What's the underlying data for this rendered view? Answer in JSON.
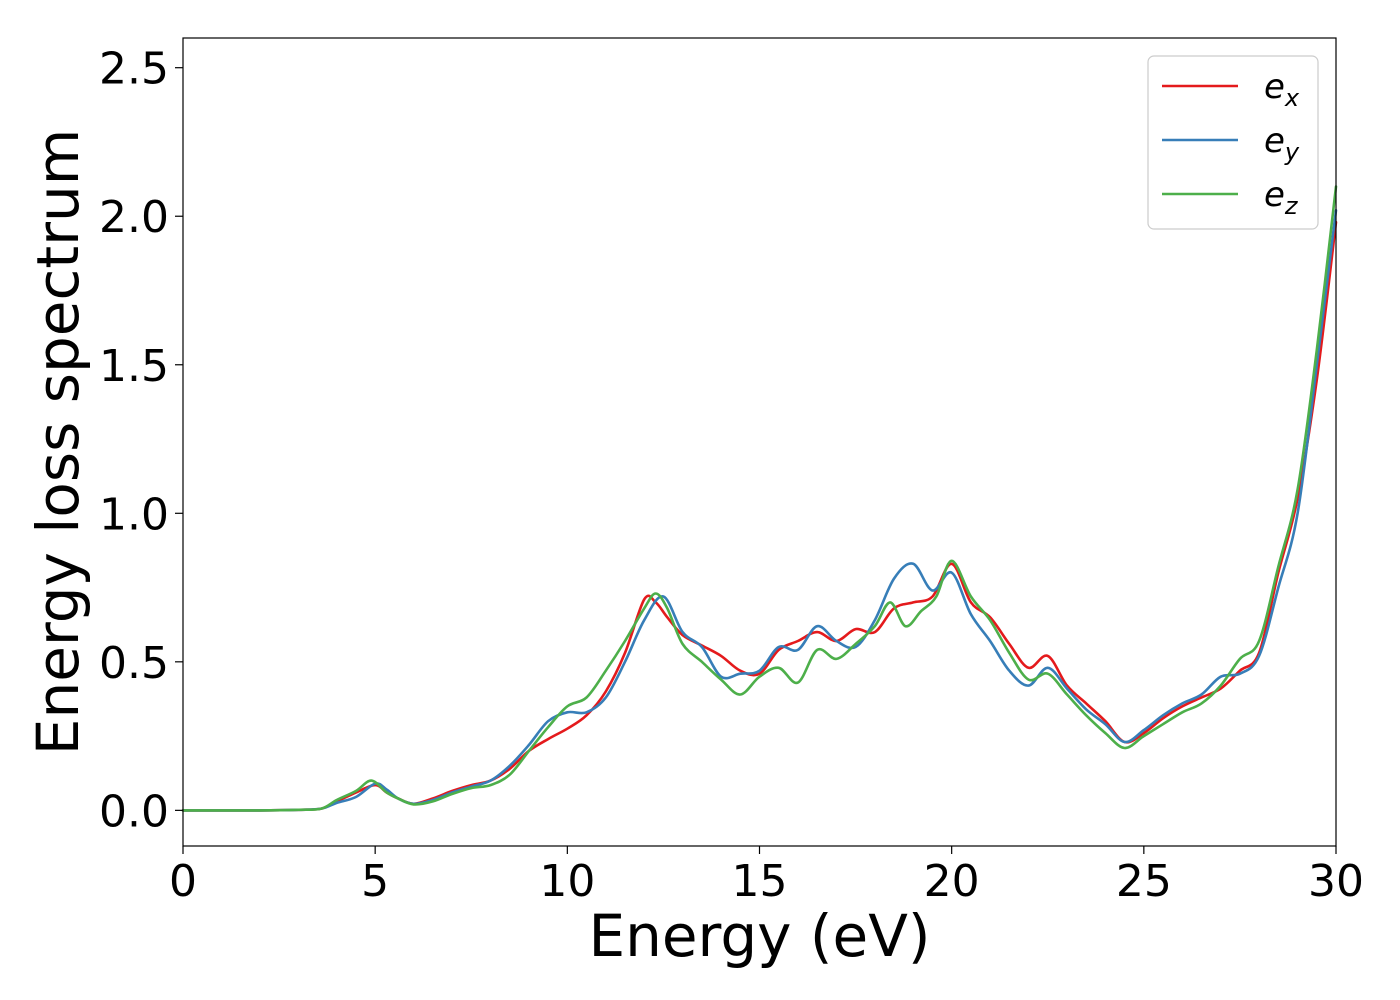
{
  "chart_data": {
    "type": "line",
    "title": "",
    "xlabel": "Energy (eV)",
    "ylabel": "Energy loss spectrum",
    "xlim": [
      0,
      30
    ],
    "ylim": [
      -0.12,
      2.6
    ],
    "x_ticks": [
      0,
      5,
      10,
      15,
      20,
      25,
      30
    ],
    "x_tick_labels": [
      "0",
      "5",
      "10",
      "15",
      "20",
      "25",
      "30"
    ],
    "y_ticks": [
      0.0,
      0.5,
      1.0,
      1.5,
      2.0,
      2.5
    ],
    "y_tick_labels": [
      "0.0",
      "0.5",
      "1.0",
      "1.5",
      "2.0",
      "2.5"
    ],
    "grid": false,
    "legend_position": "top-right",
    "series": [
      {
        "name": "e_x",
        "label_base": "e",
        "label_sub": "x",
        "color": "#e41a1c",
        "points": [
          [
            0,
            0.0
          ],
          [
            2,
            0.0
          ],
          [
            3,
            0.002
          ],
          [
            3.6,
            0.006
          ],
          [
            4.0,
            0.03
          ],
          [
            4.5,
            0.06
          ],
          [
            5.0,
            0.085
          ],
          [
            5.3,
            0.06
          ],
          [
            5.6,
            0.04
          ],
          [
            6.0,
            0.022
          ],
          [
            6.5,
            0.04
          ],
          [
            7.0,
            0.065
          ],
          [
            7.5,
            0.085
          ],
          [
            8.0,
            0.1
          ],
          [
            8.5,
            0.14
          ],
          [
            9.0,
            0.2
          ],
          [
            9.5,
            0.24
          ],
          [
            10.0,
            0.275
          ],
          [
            10.5,
            0.32
          ],
          [
            11.0,
            0.4
          ],
          [
            11.5,
            0.53
          ],
          [
            12.0,
            0.71
          ],
          [
            12.3,
            0.7
          ],
          [
            12.6,
            0.65
          ],
          [
            13.0,
            0.59
          ],
          [
            13.5,
            0.555
          ],
          [
            14.0,
            0.52
          ],
          [
            14.5,
            0.47
          ],
          [
            15.0,
            0.46
          ],
          [
            15.5,
            0.54
          ],
          [
            16.0,
            0.57
          ],
          [
            16.5,
            0.6
          ],
          [
            17.0,
            0.57
          ],
          [
            17.5,
            0.61
          ],
          [
            18.0,
            0.6
          ],
          [
            18.5,
            0.68
          ],
          [
            19.0,
            0.7
          ],
          [
            19.5,
            0.72
          ],
          [
            20.0,
            0.83
          ],
          [
            20.5,
            0.7
          ],
          [
            21.0,
            0.65
          ],
          [
            21.5,
            0.56
          ],
          [
            22.0,
            0.48
          ],
          [
            22.5,
            0.52
          ],
          [
            23.0,
            0.42
          ],
          [
            23.5,
            0.36
          ],
          [
            24.0,
            0.3
          ],
          [
            24.5,
            0.23
          ],
          [
            25.0,
            0.26
          ],
          [
            25.5,
            0.31
          ],
          [
            26.0,
            0.35
          ],
          [
            26.5,
            0.38
          ],
          [
            27.0,
            0.41
          ],
          [
            27.5,
            0.47
          ],
          [
            28.0,
            0.53
          ],
          [
            28.5,
            0.8
          ],
          [
            29.0,
            1.05
          ],
          [
            29.5,
            1.45
          ],
          [
            30.0,
            1.98
          ]
        ]
      },
      {
        "name": "e_y",
        "label_base": "e",
        "label_sub": "y",
        "color": "#377eb8",
        "points": [
          [
            0,
            0.0
          ],
          [
            2,
            0.0
          ],
          [
            3,
            0.002
          ],
          [
            3.6,
            0.006
          ],
          [
            4.0,
            0.025
          ],
          [
            4.5,
            0.045
          ],
          [
            5.0,
            0.09
          ],
          [
            5.3,
            0.07
          ],
          [
            5.6,
            0.04
          ],
          [
            6.0,
            0.022
          ],
          [
            6.5,
            0.035
          ],
          [
            7.0,
            0.06
          ],
          [
            7.5,
            0.08
          ],
          [
            8.0,
            0.1
          ],
          [
            8.5,
            0.15
          ],
          [
            9.0,
            0.22
          ],
          [
            9.5,
            0.3
          ],
          [
            10.0,
            0.33
          ],
          [
            10.5,
            0.33
          ],
          [
            11.0,
            0.38
          ],
          [
            11.5,
            0.5
          ],
          [
            12.0,
            0.64
          ],
          [
            12.5,
            0.72
          ],
          [
            13.0,
            0.6
          ],
          [
            13.5,
            0.55
          ],
          [
            14.0,
            0.45
          ],
          [
            14.5,
            0.46
          ],
          [
            15.0,
            0.47
          ],
          [
            15.5,
            0.55
          ],
          [
            16.0,
            0.54
          ],
          [
            16.5,
            0.62
          ],
          [
            17.0,
            0.57
          ],
          [
            17.5,
            0.55
          ],
          [
            18.0,
            0.64
          ],
          [
            18.5,
            0.78
          ],
          [
            19.0,
            0.83
          ],
          [
            19.5,
            0.74
          ],
          [
            20.0,
            0.8
          ],
          [
            20.5,
            0.66
          ],
          [
            21.0,
            0.57
          ],
          [
            21.5,
            0.47
          ],
          [
            22.0,
            0.42
          ],
          [
            22.5,
            0.48
          ],
          [
            23.0,
            0.41
          ],
          [
            23.5,
            0.34
          ],
          [
            24.0,
            0.29
          ],
          [
            24.5,
            0.23
          ],
          [
            25.0,
            0.27
          ],
          [
            25.5,
            0.32
          ],
          [
            26.0,
            0.36
          ],
          [
            26.5,
            0.39
          ],
          [
            27.0,
            0.45
          ],
          [
            27.5,
            0.46
          ],
          [
            28.0,
            0.52
          ],
          [
            28.5,
            0.75
          ],
          [
            29.0,
            1.0
          ],
          [
            29.5,
            1.5
          ],
          [
            30.0,
            2.02
          ]
        ]
      },
      {
        "name": "e_z",
        "label_base": "e",
        "label_sub": "z",
        "color": "#4daf4a",
        "points": [
          [
            0,
            0.0
          ],
          [
            2,
            0.0
          ],
          [
            3,
            0.002
          ],
          [
            3.6,
            0.006
          ],
          [
            4.0,
            0.035
          ],
          [
            4.5,
            0.065
          ],
          [
            4.9,
            0.1
          ],
          [
            5.3,
            0.06
          ],
          [
            5.6,
            0.04
          ],
          [
            6.0,
            0.02
          ],
          [
            6.5,
            0.03
          ],
          [
            7.0,
            0.055
          ],
          [
            7.5,
            0.075
          ],
          [
            8.0,
            0.085
          ],
          [
            8.5,
            0.12
          ],
          [
            9.0,
            0.2
          ],
          [
            9.5,
            0.28
          ],
          [
            10.0,
            0.35
          ],
          [
            10.5,
            0.38
          ],
          [
            11.0,
            0.47
          ],
          [
            11.5,
            0.57
          ],
          [
            12.0,
            0.68
          ],
          [
            12.3,
            0.73
          ],
          [
            12.6,
            0.68
          ],
          [
            13.0,
            0.56
          ],
          [
            13.5,
            0.5
          ],
          [
            14.0,
            0.44
          ],
          [
            14.5,
            0.39
          ],
          [
            15.0,
            0.45
          ],
          [
            15.5,
            0.48
          ],
          [
            16.0,
            0.43
          ],
          [
            16.5,
            0.54
          ],
          [
            17.0,
            0.51
          ],
          [
            17.5,
            0.56
          ],
          [
            18.0,
            0.62
          ],
          [
            18.4,
            0.7
          ],
          [
            18.8,
            0.62
          ],
          [
            19.2,
            0.67
          ],
          [
            19.6,
            0.72
          ],
          [
            20.0,
            0.84
          ],
          [
            20.5,
            0.72
          ],
          [
            21.0,
            0.64
          ],
          [
            21.5,
            0.53
          ],
          [
            22.0,
            0.44
          ],
          [
            22.5,
            0.46
          ],
          [
            23.0,
            0.39
          ],
          [
            23.5,
            0.32
          ],
          [
            24.0,
            0.26
          ],
          [
            24.5,
            0.21
          ],
          [
            25.0,
            0.25
          ],
          [
            25.5,
            0.29
          ],
          [
            26.0,
            0.33
          ],
          [
            26.5,
            0.36
          ],
          [
            27.0,
            0.42
          ],
          [
            27.5,
            0.51
          ],
          [
            28.0,
            0.57
          ],
          [
            28.5,
            0.82
          ],
          [
            29.0,
            1.08
          ],
          [
            29.5,
            1.55
          ],
          [
            30.0,
            2.1
          ]
        ]
      }
    ]
  }
}
